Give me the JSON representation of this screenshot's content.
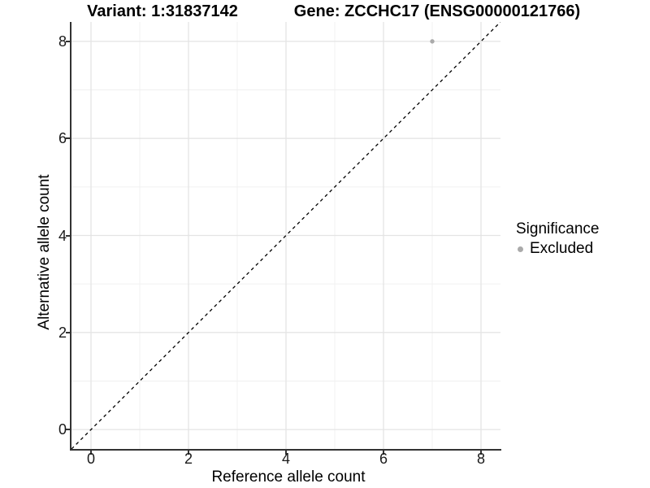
{
  "titles": {
    "variant": "Variant: 1:31837142",
    "gene": "Gene: ZCCHC17 (ENSG00000121766)"
  },
  "legend": {
    "title": "Significance",
    "items": [
      {
        "label": "Excluded",
        "color": "#aaaaaa"
      }
    ]
  },
  "chart_data": {
    "type": "scatter",
    "title": "Variant: 1:31837142   Gene: ZCCHC17 (ENSG00000121766)",
    "xlabel": "Reference allele count",
    "ylabel": "Alternative allele count",
    "xlim": [
      -0.4,
      8.4
    ],
    "ylim": [
      -0.4,
      8.4
    ],
    "x_ticks": [
      0,
      2,
      4,
      6,
      8
    ],
    "y_ticks": [
      0,
      2,
      4,
      6,
      8
    ],
    "x_minor_ticks": [
      1,
      3,
      5,
      7
    ],
    "y_minor_ticks": [
      1,
      3,
      5,
      7
    ],
    "grid": true,
    "legend_position": "right",
    "series": [
      {
        "name": "Excluded",
        "color": "#aaaaaa",
        "points": [
          [
            7,
            8
          ]
        ]
      }
    ],
    "identity_line": {
      "slope": 1,
      "intercept": 0,
      "linetype": "dashed",
      "color": "#000000"
    }
  },
  "colors": {
    "grid_major": "#e4e4e4",
    "grid_minor": "#f0f0f0",
    "axis_line": "#333333",
    "tick_text": "#1a1a1a",
    "point": "#aaaaaa"
  }
}
